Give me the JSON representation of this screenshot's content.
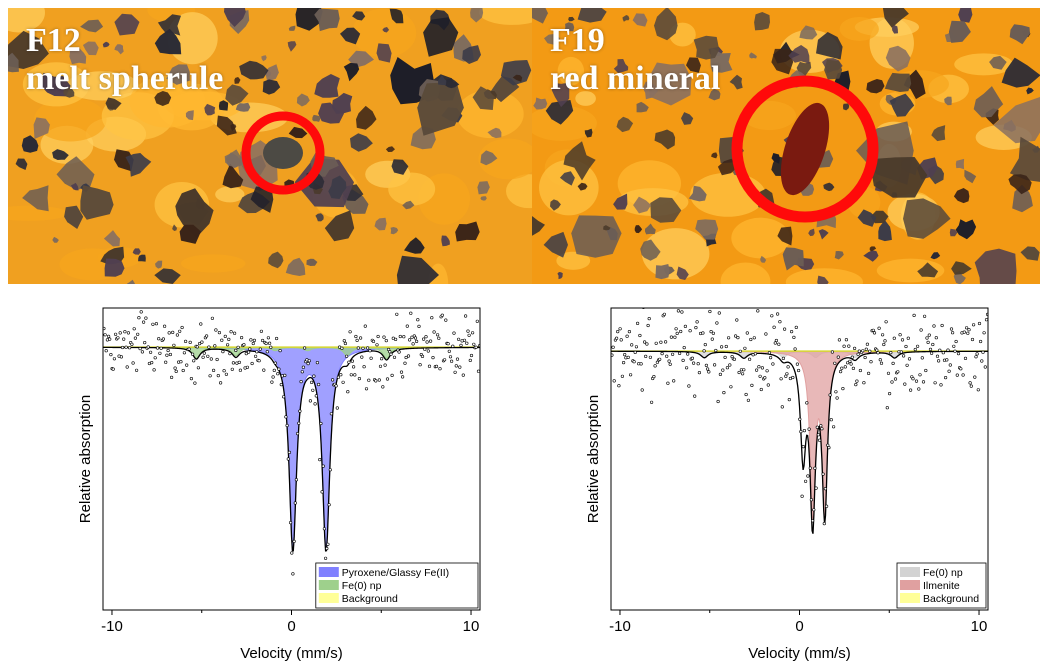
{
  "photos": [
    {
      "label_line1": "F12",
      "label_line2": "melt spherule",
      "ring_color": "#ff0a0a",
      "background_color": "#f0a020"
    },
    {
      "label_line1": "F19",
      "label_line2": "red mineral",
      "ring_color": "#ff0a0a",
      "background_color": "#f39a14"
    }
  ],
  "chart_data": [
    {
      "type": "line",
      "title": "",
      "xlabel": "Velocity (mm/s)",
      "ylabel": "Relative absorption",
      "xlim": [
        -10.5,
        10.5
      ],
      "xticks": [
        -10,
        0,
        10
      ],
      "grid": false,
      "legend_position": "bottom-right",
      "baseline": 1.0,
      "series": [
        {
          "name": "Pyroxene/Glassy Fe(II)",
          "color": "#8080ff",
          "kind": "doublet",
          "center": 1.0,
          "split": 1.85,
          "depth": 0.36,
          "width": 0.5
        },
        {
          "name": "Fe(0) np",
          "color": "#9ed08c",
          "kind": "sextet",
          "center": 0.0,
          "lines": [
            -5.3,
            -3.1,
            -0.9,
            0.9,
            3.1,
            5.3
          ],
          "depths": [
            0.02,
            0.015,
            0.006,
            0.006,
            0.015,
            0.02
          ],
          "width": 0.5
        },
        {
          "name": "Background",
          "color": "#ffff99",
          "kind": "flat"
        }
      ],
      "fit_color": "#000000",
      "noise": 0.08,
      "ylim": [
        0.53,
        1.07
      ]
    },
    {
      "type": "line",
      "title": "",
      "xlabel": "Velocity (mm/s)",
      "ylabel": "Relative absorption",
      "xlim": [
        -10.5,
        10.5
      ],
      "xticks": [
        -10,
        0,
        10
      ],
      "grid": false,
      "legend_position": "bottom-right",
      "baseline": 1.0,
      "series": [
        {
          "name": "Fe(0) np",
          "color": "#d3d3d3",
          "kind": "sextet",
          "center": 0.0,
          "lines": [
            -5.3,
            -3.1,
            -0.9,
            0.9,
            3.1,
            5.3
          ],
          "depths": [
            0.01,
            0.01,
            0.01,
            0.01,
            0.01,
            0.01
          ],
          "width": 0.5
        },
        {
          "name": "Ilmenite",
          "color": "#e0a0a0",
          "kind": "doublet",
          "center": 1.07,
          "split": 0.68,
          "depth": 0.26,
          "width": 0.35
        },
        {
          "name": "Background",
          "color": "#ffff99",
          "kind": "flat"
        }
      ],
      "extra_peaks": [
        {
          "x": 0.2,
          "depth": 0.16,
          "width": 0.35
        }
      ],
      "fit_color": "#000000",
      "noise": 0.1,
      "ylim": [
        0.58,
        1.07
      ]
    }
  ]
}
